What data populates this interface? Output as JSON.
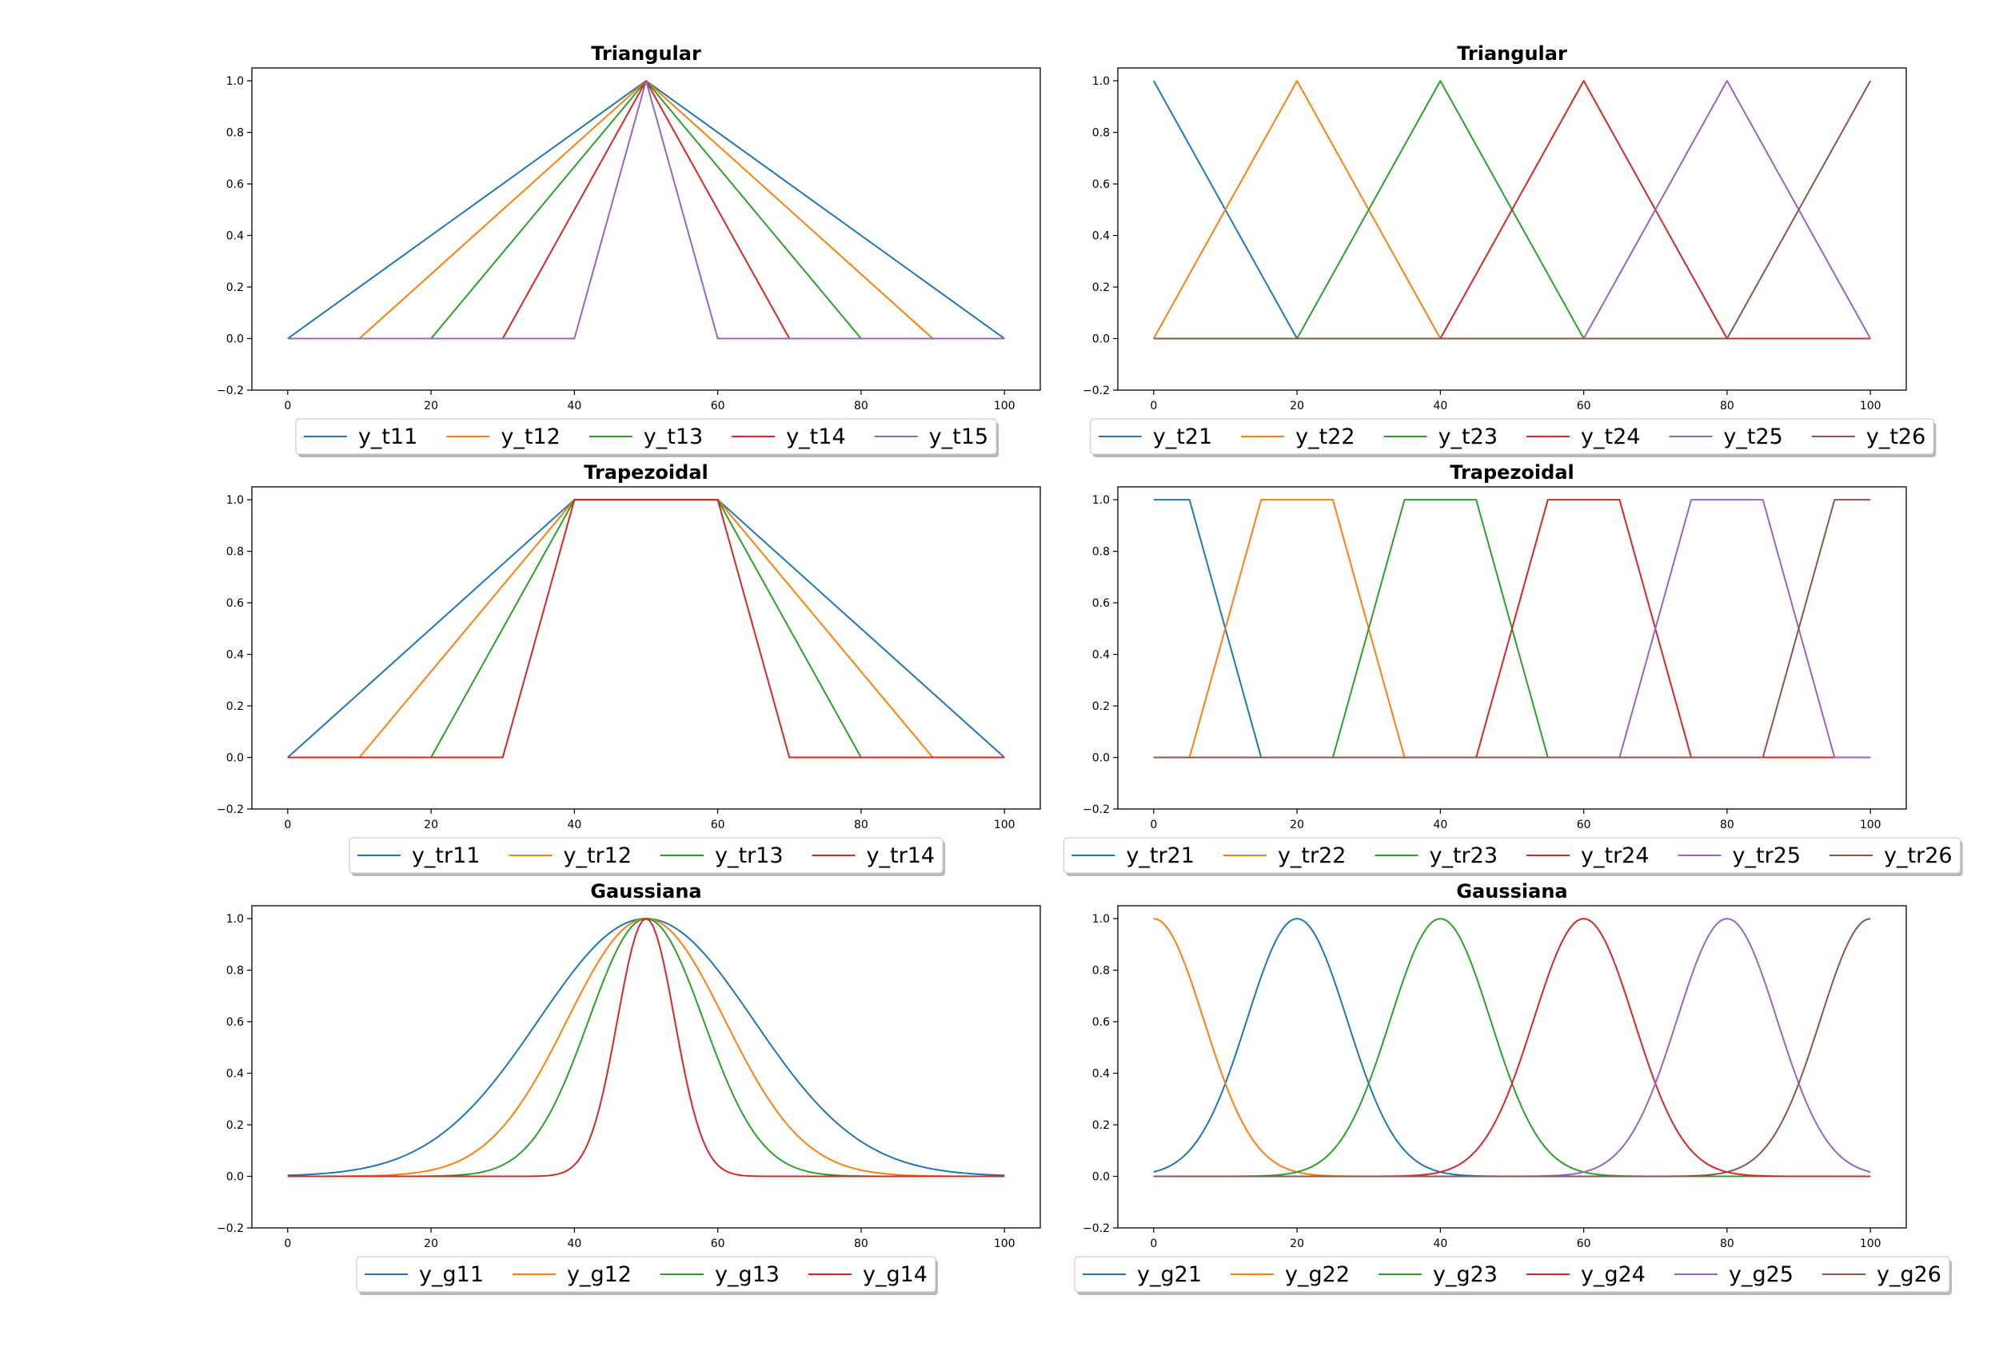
{
  "figure": {
    "colors": [
      "#1f77b4",
      "#ff7f0e",
      "#2ca02c",
      "#d62728",
      "#9467bd",
      "#8c564b"
    ]
  },
  "chart_data": [
    {
      "type": "line",
      "title": "Triangular",
      "xlim": [
        -5,
        105
      ],
      "ylim": [
        -0.2,
        1.05
      ],
      "xticks": [
        0,
        20,
        40,
        60,
        80,
        100
      ],
      "yticks": [
        -0.2,
        0.0,
        0.2,
        0.4,
        0.6,
        0.8,
        1.0
      ],
      "legend_position": "bottom-center",
      "series": [
        {
          "name": "y_t11",
          "color": "#1f77b4",
          "x": [
            0,
            50,
            100
          ],
          "y": [
            0,
            1,
            0
          ]
        },
        {
          "name": "y_t12",
          "color": "#ff7f0e",
          "x": [
            0,
            10,
            50,
            90,
            100
          ],
          "y": [
            0,
            0,
            1,
            0,
            0
          ]
        },
        {
          "name": "y_t13",
          "color": "#2ca02c",
          "x": [
            0,
            20,
            50,
            80,
            100
          ],
          "y": [
            0,
            0,
            1,
            0,
            0
          ]
        },
        {
          "name": "y_t14",
          "color": "#d62728",
          "x": [
            0,
            30,
            50,
            70,
            100
          ],
          "y": [
            0,
            0,
            1,
            0,
            0
          ]
        },
        {
          "name": "y_t15",
          "color": "#9467bd",
          "x": [
            0,
            40,
            50,
            60,
            100
          ],
          "y": [
            0,
            0,
            1,
            0,
            0
          ]
        }
      ]
    },
    {
      "type": "line",
      "title": "Triangular",
      "xlim": [
        -5,
        105
      ],
      "ylim": [
        -0.2,
        1.05
      ],
      "xticks": [
        0,
        20,
        40,
        60,
        80,
        100
      ],
      "yticks": [
        -0.2,
        0.0,
        0.2,
        0.4,
        0.6,
        0.8,
        1.0
      ],
      "legend_position": "bottom-center",
      "series": [
        {
          "name": "y_t21",
          "color": "#1f77b4",
          "x": [
            0,
            20,
            100
          ],
          "y": [
            1,
            0,
            0
          ]
        },
        {
          "name": "y_t22",
          "color": "#ff7f0e",
          "x": [
            0,
            20,
            40,
            100
          ],
          "y": [
            0,
            1,
            0,
            0
          ]
        },
        {
          "name": "y_t23",
          "color": "#2ca02c",
          "x": [
            0,
            20,
            40,
            60,
            100
          ],
          "y": [
            0,
            0,
            1,
            0,
            0
          ]
        },
        {
          "name": "y_t24",
          "color": "#d62728",
          "x": [
            0,
            40,
            60,
            80,
            100
          ],
          "y": [
            0,
            0,
            1,
            0,
            0
          ]
        },
        {
          "name": "y_t25",
          "color": "#9467bd",
          "x": [
            0,
            60,
            80,
            100
          ],
          "y": [
            0,
            0,
            1,
            0
          ]
        },
        {
          "name": "y_t26",
          "color": "#8c564b",
          "x": [
            0,
            80,
            100
          ],
          "y": [
            0,
            0,
            1
          ]
        }
      ]
    },
    {
      "type": "line",
      "title": "Trapezoidal",
      "xlim": [
        -5,
        105
      ],
      "ylim": [
        -0.2,
        1.05
      ],
      "xticks": [
        0,
        20,
        40,
        60,
        80,
        100
      ],
      "yticks": [
        -0.2,
        0.0,
        0.2,
        0.4,
        0.6,
        0.8,
        1.0
      ],
      "legend_position": "bottom-center",
      "series": [
        {
          "name": "y_tr11",
          "color": "#1f77b4",
          "x": [
            0,
            40,
            60,
            100
          ],
          "y": [
            0,
            1,
            1,
            0
          ]
        },
        {
          "name": "y_tr12",
          "color": "#ff7f0e",
          "x": [
            0,
            10,
            40,
            60,
            90,
            100
          ],
          "y": [
            0,
            0,
            1,
            1,
            0,
            0
          ]
        },
        {
          "name": "y_tr13",
          "color": "#2ca02c",
          "x": [
            0,
            20,
            40,
            60,
            80,
            100
          ],
          "y": [
            0,
            0,
            1,
            1,
            0,
            0
          ]
        },
        {
          "name": "y_tr14",
          "color": "#d62728",
          "x": [
            0,
            30,
            40,
            60,
            70,
            100
          ],
          "y": [
            0,
            0,
            1,
            1,
            0,
            0
          ]
        }
      ]
    },
    {
      "type": "line",
      "title": "Trapezoidal",
      "xlim": [
        -5,
        105
      ],
      "ylim": [
        -0.2,
        1.05
      ],
      "xticks": [
        0,
        20,
        40,
        60,
        80,
        100
      ],
      "yticks": [
        -0.2,
        0.0,
        0.2,
        0.4,
        0.6,
        0.8,
        1.0
      ],
      "legend_position": "bottom-center",
      "series": [
        {
          "name": "y_tr21",
          "color": "#1f77b4",
          "x": [
            0,
            5,
            15,
            100
          ],
          "y": [
            1,
            1,
            0,
            0
          ]
        },
        {
          "name": "y_tr22",
          "color": "#ff7f0e",
          "x": [
            0,
            5,
            15,
            25,
            35,
            100
          ],
          "y": [
            0,
            0,
            1,
            1,
            0,
            0
          ]
        },
        {
          "name": "y_tr23",
          "color": "#2ca02c",
          "x": [
            0,
            25,
            35,
            45,
            55,
            100
          ],
          "y": [
            0,
            0,
            1,
            1,
            0,
            0
          ]
        },
        {
          "name": "y_tr24",
          "color": "#d62728",
          "x": [
            0,
            45,
            55,
            65,
            75,
            100
          ],
          "y": [
            0,
            0,
            1,
            1,
            0,
            0
          ]
        },
        {
          "name": "y_tr25",
          "color": "#9467bd",
          "x": [
            0,
            65,
            75,
            85,
            95,
            100
          ],
          "y": [
            0,
            0,
            1,
            1,
            0,
            0
          ]
        },
        {
          "name": "y_tr26",
          "color": "#8c564b",
          "x": [
            0,
            85,
            95,
            100
          ],
          "y": [
            0,
            0,
            1,
            1
          ]
        }
      ]
    },
    {
      "type": "line",
      "title": "Gaussiana",
      "xlim": [
        -5,
        105
      ],
      "ylim": [
        -0.2,
        1.05
      ],
      "xticks": [
        0,
        20,
        40,
        60,
        80,
        100
      ],
      "yticks": [
        -0.2,
        0.0,
        0.2,
        0.4,
        0.6,
        0.8,
        1.0
      ],
      "legend_position": "bottom-center",
      "gaussian": true,
      "series": [
        {
          "name": "y_g11",
          "color": "#1f77b4",
          "mean": 50,
          "sigma": 15
        },
        {
          "name": "y_g12",
          "color": "#ff7f0e",
          "mean": 50,
          "sigma": 11
        },
        {
          "name": "y_g13",
          "color": "#2ca02c",
          "mean": 50,
          "sigma": 8
        },
        {
          "name": "y_g14",
          "color": "#d62728",
          "mean": 50,
          "sigma": 4
        }
      ]
    },
    {
      "type": "line",
      "title": "Gaussiana",
      "xlim": [
        -5,
        105
      ],
      "ylim": [
        -0.2,
        1.05
      ],
      "xticks": [
        0,
        20,
        40,
        60,
        80,
        100
      ],
      "yticks": [
        -0.2,
        0.0,
        0.2,
        0.4,
        0.6,
        0.8,
        1.0
      ],
      "legend_position": "bottom-center",
      "gaussian": true,
      "series": [
        {
          "name": "y_g21",
          "color": "#1f77b4",
          "mean": 20,
          "sigma": 7
        },
        {
          "name": "y_g22",
          "color": "#ff7f0e",
          "mean": 0,
          "sigma": 7
        },
        {
          "name": "y_g23",
          "color": "#2ca02c",
          "mean": 40,
          "sigma": 7
        },
        {
          "name": "y_g24",
          "color": "#d62728",
          "mean": 60,
          "sigma": 7
        },
        {
          "name": "y_g25",
          "color": "#9467bd",
          "mean": 80,
          "sigma": 7
        },
        {
          "name": "y_g26",
          "color": "#8c564b",
          "mean": 100,
          "sigma": 7
        }
      ]
    }
  ]
}
